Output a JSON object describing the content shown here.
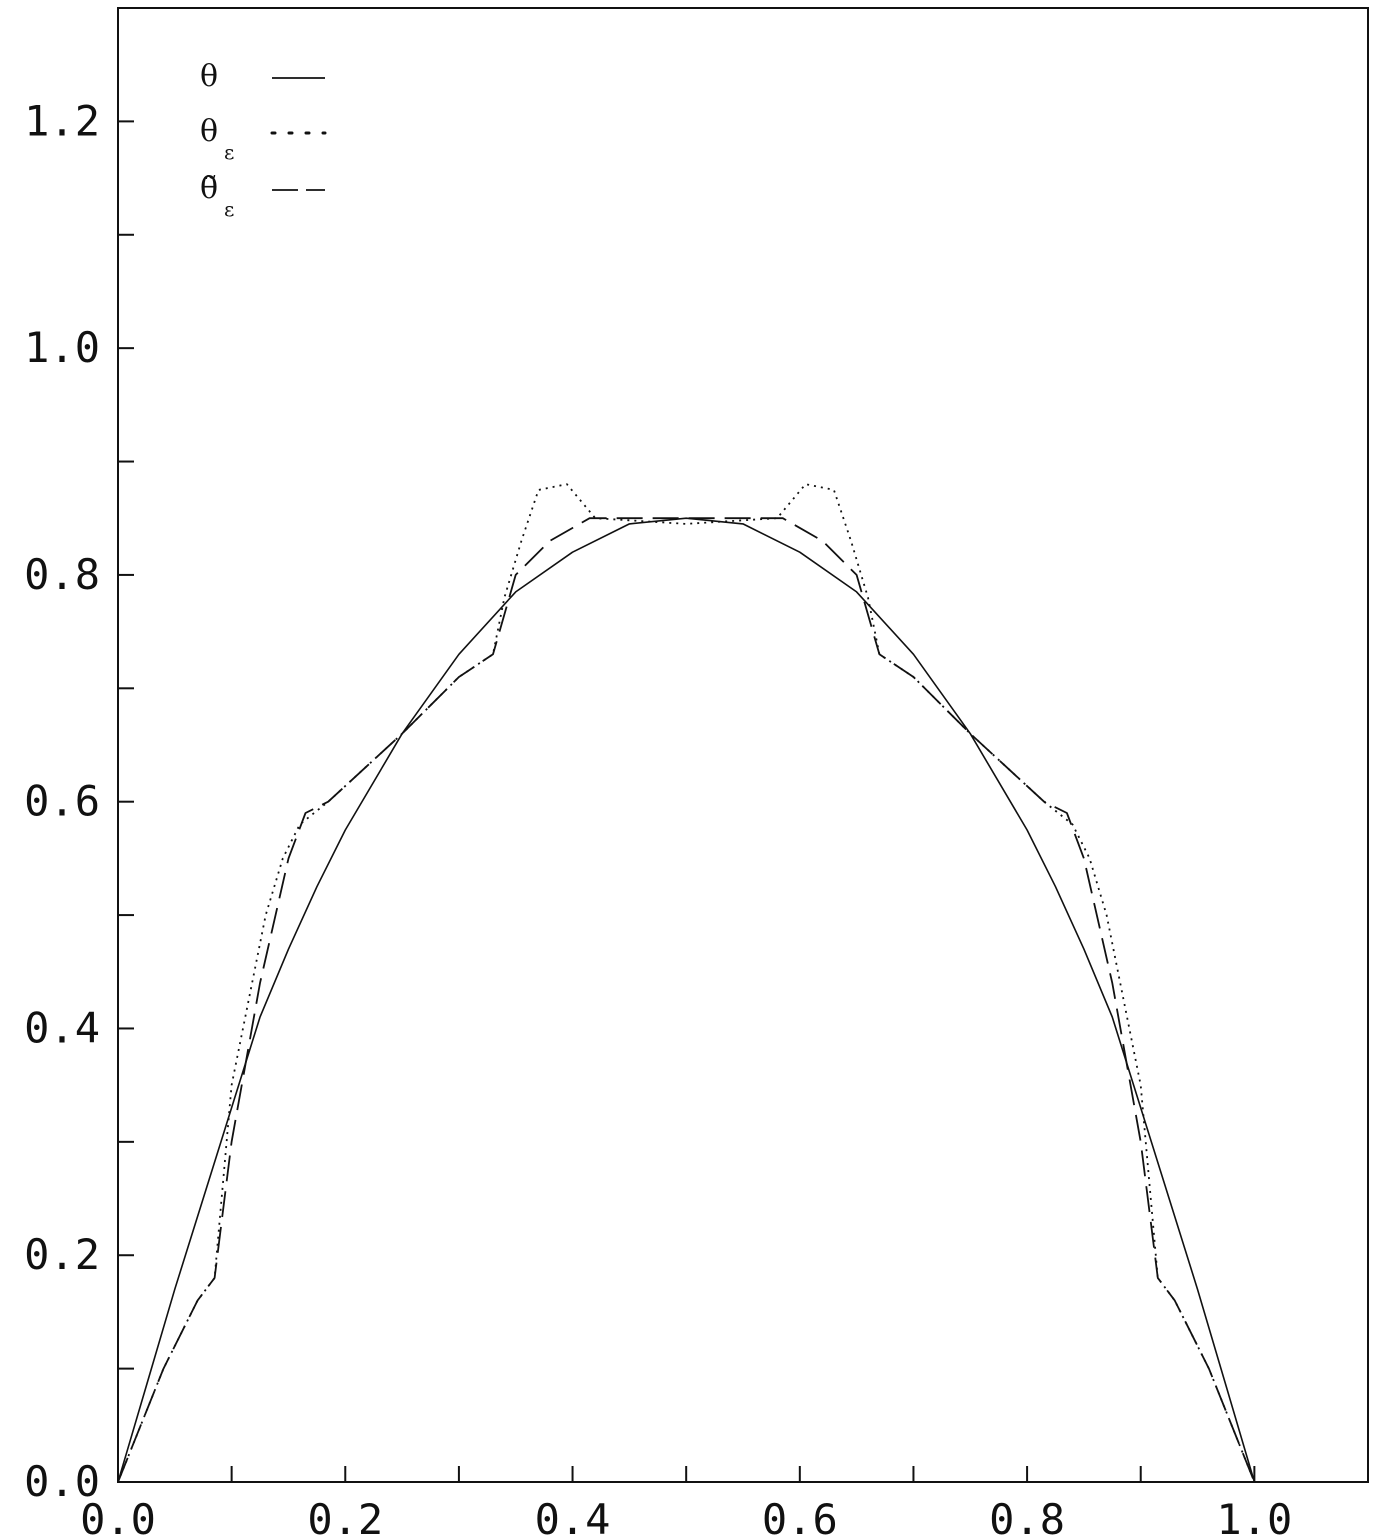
{
  "chart_data": {
    "type": "line",
    "title": "",
    "xlabel": "",
    "ylabel": "",
    "xlim": [
      0,
      1.1
    ],
    "ylim": [
      0,
      1.3
    ],
    "grid": false,
    "legend_position": "top-left",
    "x_tick_labels": [
      "0.0",
      "0.2",
      "0.4",
      "0.6",
      "0.8",
      "1.0"
    ],
    "x_tick_values": [
      0,
      0.2,
      0.4,
      0.6,
      0.8,
      1.0
    ],
    "x_minor_ticks": [
      0.1,
      0.3,
      0.5,
      0.7,
      0.9,
      1.1
    ],
    "y_tick_labels": [
      "0.0",
      "0.2",
      "0.4",
      "0.6",
      "0.8",
      "1.0",
      "1.2"
    ],
    "y_tick_values": [
      0,
      0.2,
      0.4,
      0.6,
      0.8,
      1.0,
      1.2
    ],
    "y_minor_ticks": [
      0.1,
      0.3,
      0.5,
      0.7,
      0.9,
      1.1
    ],
    "series": [
      {
        "name": "θ",
        "subscript": "",
        "style": "solid",
        "x": [
          0,
          0.025,
          0.05,
          0.075,
          0.1,
          0.125,
          0.15,
          0.175,
          0.2,
          0.25,
          0.3,
          0.35,
          0.4,
          0.45,
          0.5,
          0.55,
          0.6,
          0.65,
          0.7,
          0.75,
          0.8,
          0.825,
          0.85,
          0.875,
          0.9,
          0.925,
          0.95,
          0.975,
          1.0
        ],
        "y": [
          0,
          0.085,
          0.17,
          0.25,
          0.33,
          0.41,
          0.47,
          0.525,
          0.575,
          0.66,
          0.73,
          0.785,
          0.82,
          0.845,
          0.85,
          0.845,
          0.82,
          0.785,
          0.73,
          0.66,
          0.575,
          0.525,
          0.47,
          0.41,
          0.33,
          0.25,
          0.17,
          0.085,
          0
        ]
      },
      {
        "name": "θ",
        "subscript": "ε",
        "style": "dotted",
        "x": [
          0,
          0.04,
          0.07,
          0.085,
          0.1,
          0.13,
          0.145,
          0.16,
          0.185,
          0.25,
          0.3,
          0.33,
          0.34,
          0.355,
          0.37,
          0.395,
          0.42,
          0.5,
          0.58,
          0.605,
          0.63,
          0.645,
          0.66,
          0.67,
          0.7,
          0.75,
          0.815,
          0.84,
          0.855,
          0.87,
          0.9,
          0.915,
          0.93,
          0.96,
          1.0
        ],
        "y": [
          0,
          0.1,
          0.16,
          0.18,
          0.35,
          0.5,
          0.55,
          0.58,
          0.6,
          0.66,
          0.71,
          0.73,
          0.78,
          0.83,
          0.875,
          0.88,
          0.85,
          0.845,
          0.85,
          0.88,
          0.875,
          0.83,
          0.78,
          0.73,
          0.71,
          0.66,
          0.6,
          0.58,
          0.55,
          0.5,
          0.35,
          0.18,
          0.16,
          0.1,
          0
        ]
      },
      {
        "name": "θ̃",
        "subscript": "ε",
        "style": "dashed",
        "x": [
          0,
          0.04,
          0.07,
          0.085,
          0.1,
          0.125,
          0.15,
          0.165,
          0.185,
          0.25,
          0.3,
          0.33,
          0.35,
          0.38,
          0.415,
          0.5,
          0.585,
          0.62,
          0.65,
          0.67,
          0.7,
          0.75,
          0.815,
          0.835,
          0.85,
          0.875,
          0.9,
          0.915,
          0.93,
          0.96,
          1.0
        ],
        "y": [
          0,
          0.1,
          0.16,
          0.18,
          0.3,
          0.44,
          0.55,
          0.59,
          0.6,
          0.66,
          0.71,
          0.73,
          0.8,
          0.83,
          0.85,
          0.85,
          0.85,
          0.83,
          0.8,
          0.73,
          0.71,
          0.66,
          0.6,
          0.59,
          0.55,
          0.44,
          0.3,
          0.18,
          0.16,
          0.1,
          0
        ]
      }
    ]
  }
}
